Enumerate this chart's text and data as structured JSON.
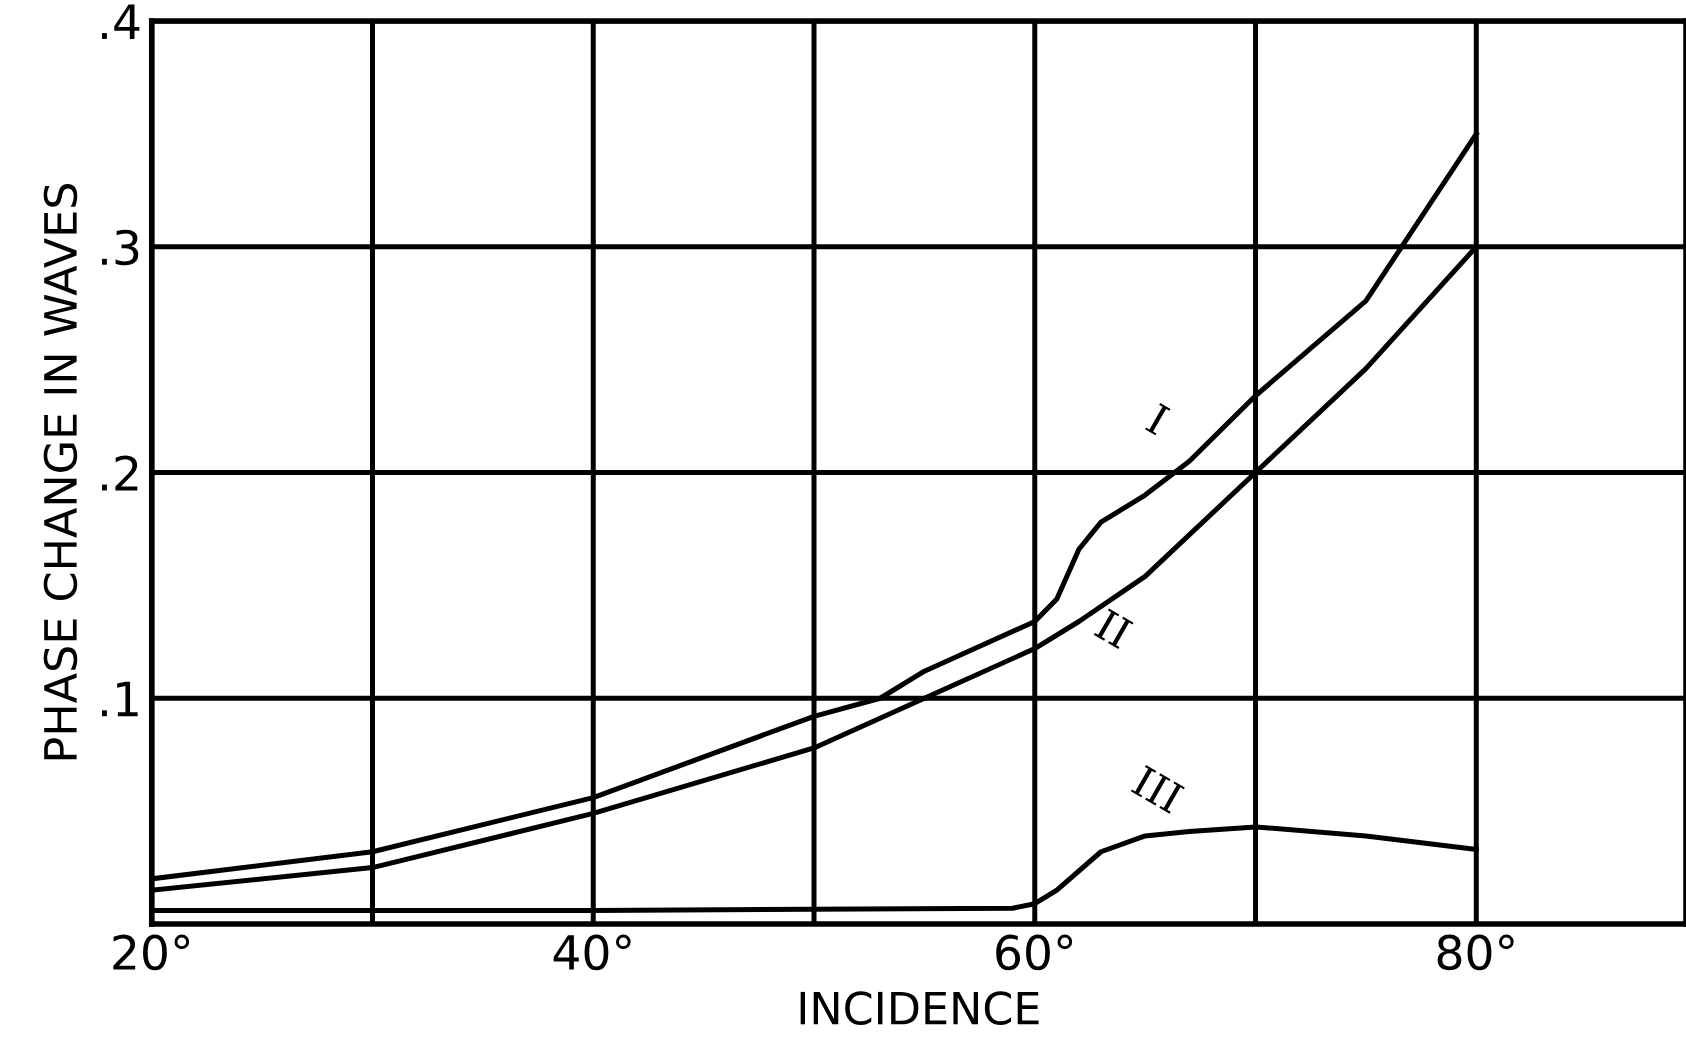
{
  "chart_data": {
    "type": "line",
    "xlabel": "INCIDENCE",
    "ylabel": "PHASE CHANGE IN WAVES",
    "xlim": [
      20,
      89.5
    ],
    "ylim": [
      0,
      0.4
    ],
    "xticks": [
      {
        "value": 20,
        "label": "20°"
      },
      {
        "value": 30,
        "label": null
      },
      {
        "value": 40,
        "label": "40°"
      },
      {
        "value": 50,
        "label": null
      },
      {
        "value": 60,
        "label": "60°"
      },
      {
        "value": 70,
        "label": null
      },
      {
        "value": 80,
        "label": "80°"
      }
    ],
    "yticks": [
      {
        "value": 0.1,
        "label": ".1"
      },
      {
        "value": 0.2,
        "label": ".2"
      },
      {
        "value": 0.3,
        "label": ".3"
      },
      {
        "value": 0.4,
        "label": ".4"
      }
    ],
    "grid": true,
    "line_style": "solid",
    "marker": "none",
    "series": [
      {
        "name": "I",
        "color": "#000000",
        "x": [
          20,
          30,
          40,
          50,
          53,
          55,
          60,
          61,
          62,
          63,
          65,
          67,
          70,
          75,
          80
        ],
        "values": [
          0.02,
          0.032,
          0.056,
          0.092,
          0.1,
          0.112,
          0.134,
          0.144,
          0.166,
          0.178,
          0.19,
          0.205,
          0.234,
          0.276,
          0.35
        ]
      },
      {
        "name": "II",
        "color": "#000000",
        "x": [
          20,
          30,
          40,
          50,
          55,
          60,
          62,
          65,
          70,
          75,
          80
        ],
        "values": [
          0.015,
          0.025,
          0.049,
          0.078,
          0.1,
          0.122,
          0.134,
          0.154,
          0.2,
          0.246,
          0.3
        ]
      },
      {
        "name": "III",
        "color": "#000000",
        "x": [
          20,
          40,
          59,
          60,
          61,
          63,
          65,
          67,
          70,
          75,
          80
        ],
        "values": [
          0.006,
          0.006,
          0.007,
          0.009,
          0.015,
          0.032,
          0.039,
          0.041,
          0.043,
          0.039,
          0.033
        ]
      }
    ]
  }
}
